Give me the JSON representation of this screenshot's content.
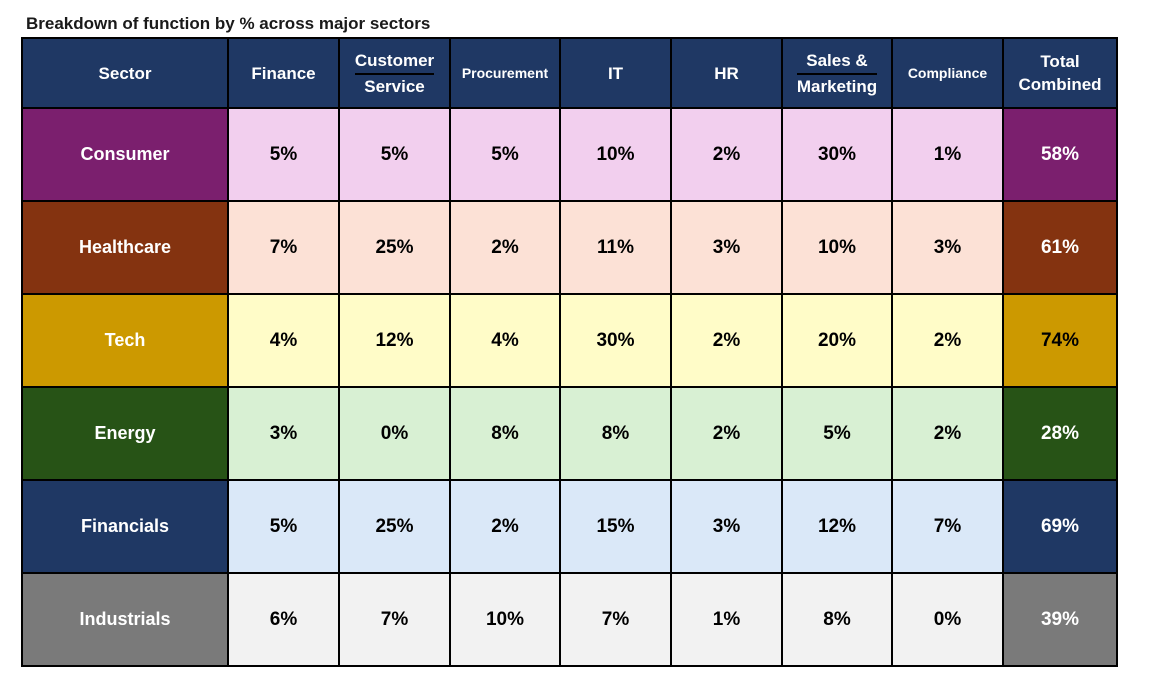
{
  "title": "Breakdown of function by % across major sectors",
  "chart_data": {
    "type": "table",
    "title": "Breakdown of function by % across major sectors",
    "columns": [
      "Sector",
      "Finance",
      "Customer Service",
      "Procurement",
      "IT",
      "HR",
      "Sales & Marketing",
      "Compliance",
      "Total Combined"
    ],
    "header_lines": [
      [
        "Sector"
      ],
      [
        "Finance"
      ],
      [
        "Customer",
        "Service"
      ],
      [
        "Procurement"
      ],
      [
        "IT"
      ],
      [
        "HR"
      ],
      [
        "Sales &",
        "Marketing"
      ],
      [
        "Compliance"
      ],
      [
        "Total",
        "Combined"
      ]
    ],
    "header_color": "#1f3864",
    "rows": [
      {
        "sector": "Consumer",
        "values": [
          "5%",
          "5%",
          "5%",
          "10%",
          "2%",
          "30%",
          "1%"
        ],
        "total": "58%",
        "sector_color": "#7b1f6e",
        "cell_color": "#f2cfee",
        "total_color": "#7b1f6e",
        "total_text_color": "#ffffff"
      },
      {
        "sector": "Healthcare",
        "values": [
          "7%",
          "25%",
          "2%",
          "11%",
          "3%",
          "10%",
          "3%"
        ],
        "total": "61%",
        "sector_color": "#843310",
        "cell_color": "#fce1d6",
        "total_color": "#843310",
        "total_text_color": "#ffffff"
      },
      {
        "sector": "Tech",
        "values": [
          "4%",
          "12%",
          "4%",
          "30%",
          "2%",
          "20%",
          "2%"
        ],
        "total": "74%",
        "sector_color": "#cc9900",
        "cell_color": "#fffcc8",
        "total_color": "#cc9900",
        "total_text_color": "#000000"
      },
      {
        "sector": "Energy",
        "values": [
          "3%",
          "0%",
          "8%",
          "8%",
          "2%",
          "5%",
          "2%"
        ],
        "total": "28%",
        "sector_color": "#275316",
        "cell_color": "#d8f0d3",
        "total_color": "#275316",
        "total_text_color": "#ffffff"
      },
      {
        "sector": "Financials",
        "values": [
          "5%",
          "25%",
          "2%",
          "15%",
          "3%",
          "12%",
          "7%"
        ],
        "total": "69%",
        "sector_color": "#1f3864",
        "cell_color": "#dae8f8",
        "total_color": "#1f3864",
        "total_text_color": "#ffffff"
      },
      {
        "sector": "Industrials",
        "values": [
          "6%",
          "7%",
          "10%",
          "7%",
          "1%",
          "8%",
          "0%"
        ],
        "total": "39%",
        "sector_color": "#7a7a7a",
        "cell_color": "#f2f2f2",
        "total_color": "#7a7a7a",
        "total_text_color": "#ffffff"
      }
    ]
  }
}
